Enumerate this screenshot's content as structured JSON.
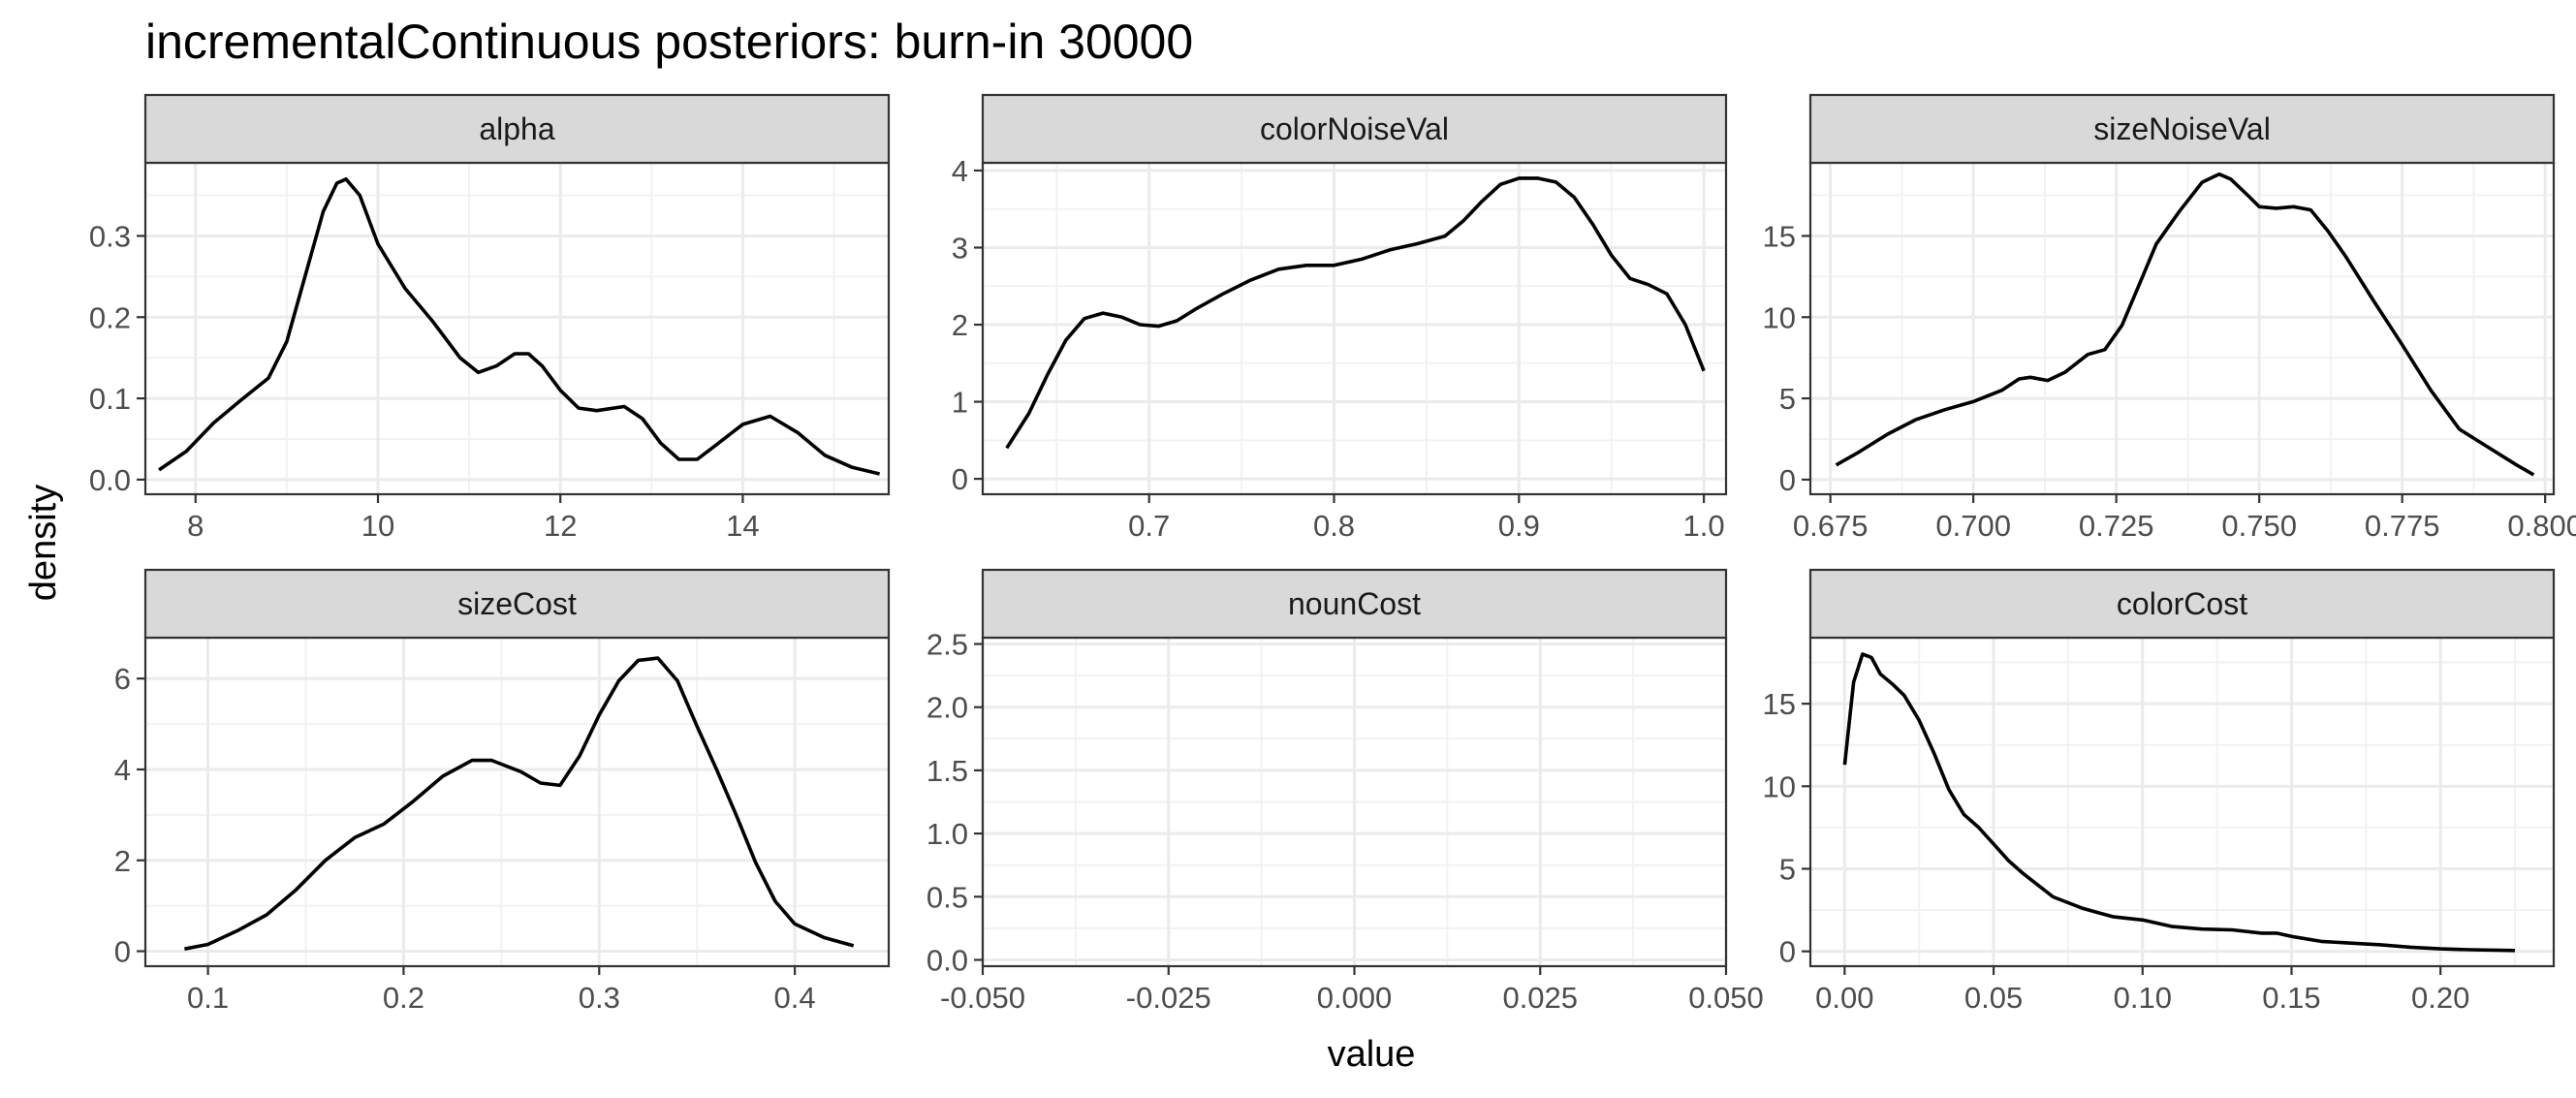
{
  "chart_data": {
    "type": "line",
    "title": "incrementalContinuous posteriors: burn-in 30000",
    "xlabel": "value",
    "ylabel": "density",
    "grid": true,
    "facets": [
      {
        "name": "alpha",
        "xlim": [
          7.45,
          15.6
        ],
        "ylim": [
          -0.018,
          0.39
        ],
        "xticks": [
          8,
          10,
          12,
          14
        ],
        "xtick_labels": [
          "8",
          "10",
          "12",
          "14"
        ],
        "yticks": [
          0.0,
          0.1,
          0.2,
          0.3
        ],
        "ytick_labels": [
          "0.0",
          "0.1",
          "0.2",
          "0.3"
        ],
        "x": [
          7.6,
          7.9,
          8.2,
          8.5,
          8.8,
          9.0,
          9.2,
          9.4,
          9.55,
          9.65,
          9.8,
          10.0,
          10.3,
          10.6,
          10.9,
          11.1,
          11.3,
          11.5,
          11.65,
          11.8,
          12.0,
          12.2,
          12.4,
          12.7,
          12.9,
          13.1,
          13.3,
          13.5,
          13.7,
          14.0,
          14.3,
          14.6,
          14.9,
          15.2,
          15.5
        ],
        "y": [
          0.012,
          0.035,
          0.07,
          0.098,
          0.125,
          0.17,
          0.25,
          0.33,
          0.365,
          0.37,
          0.35,
          0.29,
          0.235,
          0.195,
          0.15,
          0.132,
          0.14,
          0.155,
          0.155,
          0.14,
          0.11,
          0.088,
          0.085,
          0.09,
          0.075,
          0.045,
          0.025,
          0.025,
          0.042,
          0.068,
          0.078,
          0.058,
          0.03,
          0.015,
          0.007
        ]
      },
      {
        "name": "colorNoiseVal",
        "xlim": [
          0.61,
          1.012
        ],
        "ylim": [
          -0.2,
          4.1
        ],
        "xticks": [
          0.7,
          0.8,
          0.9,
          1.0
        ],
        "xtick_labels": [
          "0.7",
          "0.8",
          "0.9",
          "1.0"
        ],
        "yticks": [
          0,
          1,
          2,
          3,
          4
        ],
        "ytick_labels": [
          "0",
          "1",
          "2",
          "3",
          "4"
        ],
        "x": [
          0.623,
          0.635,
          0.645,
          0.655,
          0.665,
          0.675,
          0.685,
          0.695,
          0.705,
          0.715,
          0.725,
          0.74,
          0.755,
          0.77,
          0.785,
          0.8,
          0.815,
          0.83,
          0.845,
          0.86,
          0.87,
          0.88,
          0.89,
          0.9,
          0.91,
          0.92,
          0.93,
          0.94,
          0.95,
          0.96,
          0.97,
          0.98,
          0.99,
          1.0
        ],
        "y": [
          0.4,
          0.85,
          1.35,
          1.8,
          2.08,
          2.15,
          2.1,
          2.0,
          1.98,
          2.05,
          2.2,
          2.4,
          2.58,
          2.72,
          2.77,
          2.77,
          2.85,
          2.97,
          3.05,
          3.15,
          3.35,
          3.6,
          3.82,
          3.9,
          3.9,
          3.85,
          3.65,
          3.3,
          2.9,
          2.6,
          2.52,
          2.4,
          2.0,
          1.4
        ]
      },
      {
        "name": "sizeNoiseVal",
        "xlim": [
          0.6715,
          0.8015
        ],
        "ylim": [
          -0.9,
          19.5
        ],
        "xticks": [
          0.675,
          0.7,
          0.725,
          0.75,
          0.775,
          0.8
        ],
        "xtick_labels": [
          "0.675",
          "0.700",
          "0.725",
          "0.750",
          "0.775",
          "0.800"
        ],
        "yticks": [
          0,
          5,
          10,
          15
        ],
        "ytick_labels": [
          "0",
          "5",
          "10",
          "15"
        ],
        "x": [
          0.676,
          0.68,
          0.685,
          0.69,
          0.695,
          0.7,
          0.705,
          0.708,
          0.71,
          0.713,
          0.716,
          0.72,
          0.723,
          0.726,
          0.729,
          0.732,
          0.736,
          0.74,
          0.743,
          0.745,
          0.748,
          0.75,
          0.753,
          0.756,
          0.759,
          0.762,
          0.765,
          0.77,
          0.775,
          0.78,
          0.785,
          0.79,
          0.795,
          0.798
        ],
        "y": [
          0.9,
          1.7,
          2.8,
          3.7,
          4.3,
          4.8,
          5.5,
          6.2,
          6.3,
          6.1,
          6.6,
          7.7,
          8.0,
          9.5,
          12.0,
          14.5,
          16.5,
          18.3,
          18.8,
          18.5,
          17.5,
          16.8,
          16.7,
          16.8,
          16.6,
          15.3,
          13.8,
          11.0,
          8.3,
          5.5,
          3.1,
          2.0,
          0.9,
          0.3
        ]
      },
      {
        "name": "sizeCost",
        "xlim": [
          0.068,
          0.448
        ],
        "ylim": [
          -0.33,
          6.9
        ],
        "xticks": [
          0.1,
          0.2,
          0.3,
          0.4
        ],
        "xtick_labels": [
          "0.1",
          "0.2",
          "0.3",
          "0.4"
        ],
        "yticks": [
          0,
          2,
          4,
          6
        ],
        "ytick_labels": [
          "0",
          "2",
          "4",
          "6"
        ],
        "x": [
          0.088,
          0.1,
          0.115,
          0.13,
          0.145,
          0.16,
          0.175,
          0.19,
          0.205,
          0.22,
          0.235,
          0.245,
          0.26,
          0.27,
          0.28,
          0.29,
          0.3,
          0.31,
          0.32,
          0.33,
          0.34,
          0.35,
          0.36,
          0.37,
          0.38,
          0.39,
          0.4,
          0.415,
          0.43
        ],
        "y": [
          0.05,
          0.15,
          0.45,
          0.8,
          1.35,
          2.0,
          2.5,
          2.8,
          3.3,
          3.85,
          4.2,
          4.2,
          3.95,
          3.7,
          3.65,
          4.3,
          5.2,
          5.95,
          6.4,
          6.45,
          5.95,
          4.95,
          4.0,
          3.0,
          1.95,
          1.1,
          0.6,
          0.3,
          0.12
        ]
      },
      {
        "name": "nounCost",
        "xlim": [
          -0.05,
          0.05
        ],
        "ylim": [
          -0.05,
          2.55
        ],
        "xticks": [
          -0.05,
          -0.025,
          0.0,
          0.025,
          0.05
        ],
        "xtick_labels": [
          "-0.050",
          "-0.025",
          "0.000",
          "0.025",
          "0.050"
        ],
        "yticks": [
          0.0,
          0.5,
          1.0,
          1.5,
          2.0,
          2.5
        ],
        "ytick_labels": [
          "0.0",
          "0.5",
          "1.0",
          "1.5",
          "2.0",
          "2.5"
        ],
        "x": [],
        "y": []
      },
      {
        "name": "colorCost",
        "xlim": [
          -0.0115,
          0.238
        ],
        "ylim": [
          -0.9,
          19.0
        ],
        "xticks": [
          0.0,
          0.05,
          0.1,
          0.15,
          0.2
        ],
        "xtick_labels": [
          "0.00",
          "0.05",
          "0.10",
          "0.15",
          "0.20"
        ],
        "yticks": [
          0,
          5,
          10,
          15
        ],
        "ytick_labels": [
          "0",
          "5",
          "10",
          "15"
        ],
        "x": [
          0.0,
          0.003,
          0.006,
          0.009,
          0.012,
          0.016,
          0.02,
          0.025,
          0.03,
          0.035,
          0.04,
          0.045,
          0.05,
          0.055,
          0.06,
          0.07,
          0.08,
          0.09,
          0.1,
          0.11,
          0.12,
          0.13,
          0.14,
          0.145,
          0.15,
          0.16,
          0.17,
          0.18,
          0.19,
          0.2,
          0.21,
          0.225
        ],
        "y": [
          11.3,
          16.3,
          18.0,
          17.8,
          16.8,
          16.2,
          15.5,
          14.0,
          12.0,
          9.8,
          8.3,
          7.5,
          6.5,
          5.5,
          4.7,
          3.3,
          2.6,
          2.1,
          1.9,
          1.5,
          1.35,
          1.3,
          1.1,
          1.1,
          0.9,
          0.6,
          0.5,
          0.4,
          0.25,
          0.15,
          0.1,
          0.05
        ]
      }
    ]
  }
}
